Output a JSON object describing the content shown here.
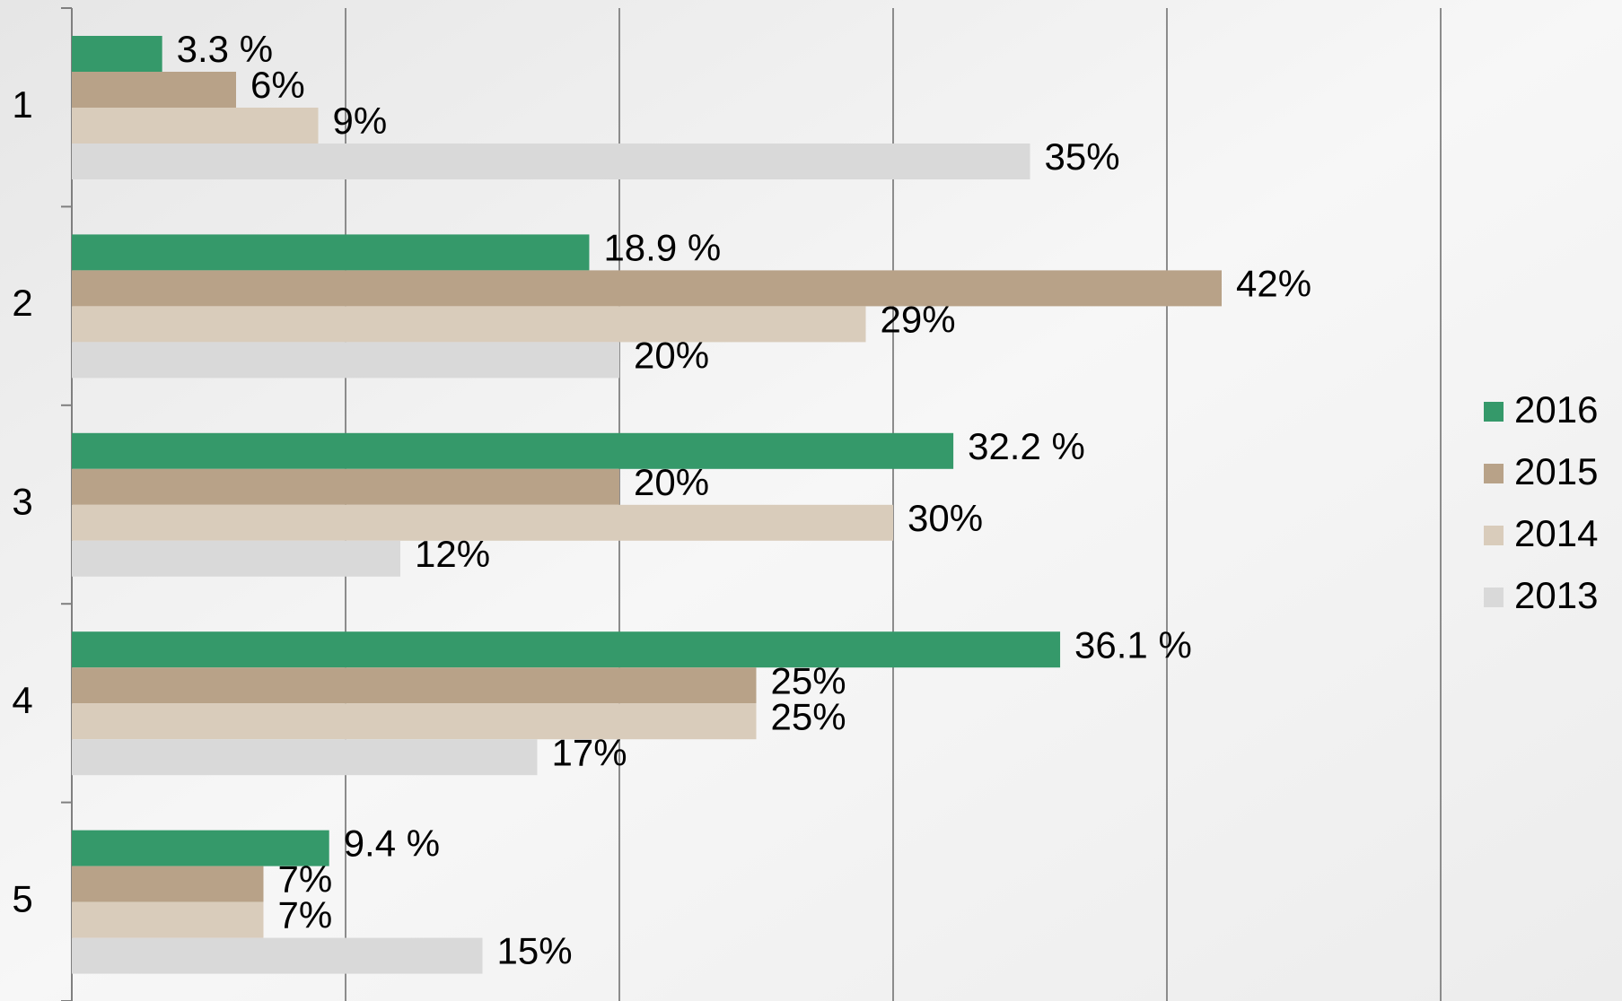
{
  "chart_data": {
    "type": "bar",
    "orientation": "horizontal",
    "categories": [
      "1",
      "2",
      "3",
      "4",
      "5"
    ],
    "series": [
      {
        "name": "2016",
        "color": "#35996a",
        "values": [
          3.3,
          18.9,
          32.2,
          36.1,
          9.4
        ],
        "value_labels": [
          "3.3 %",
          "18.9 %",
          "32.2 %",
          "36.1 %",
          "9.4 %"
        ]
      },
      {
        "name": "2015",
        "color": "#b8a288",
        "values": [
          6,
          42,
          20,
          25,
          7
        ],
        "value_labels": [
          "6%",
          "42%",
          "20%",
          "25%",
          "7%"
        ]
      },
      {
        "name": "2014",
        "color": "#d9ccbb",
        "values": [
          9,
          29,
          30,
          25,
          7
        ],
        "value_labels": [
          "9%",
          "29%",
          "30%",
          "25%",
          "7%"
        ]
      },
      {
        "name": "2013",
        "color": "#d9d9d9",
        "values": [
          35,
          20,
          12,
          17,
          15
        ],
        "value_labels": [
          "35%",
          "20%",
          "12%",
          "17%",
          "15%"
        ]
      }
    ],
    "xlim": [
      0,
      50
    ],
    "xticks": [
      0,
      10,
      20,
      30,
      40,
      50
    ],
    "grid": true,
    "legend": "right"
  }
}
